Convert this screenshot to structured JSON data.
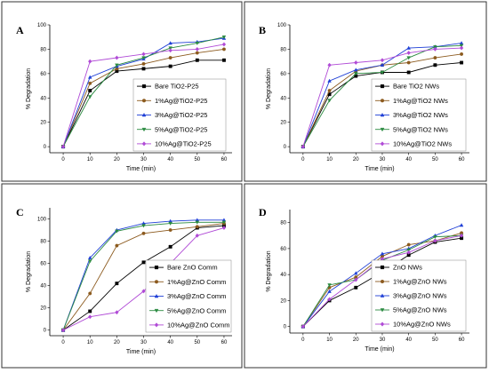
{
  "colors": {
    "Bare": "#000000",
    "1%": "#8c5a1e",
    "3%": "#1f3fd6",
    "5%": "#2a8a40",
    "10%": "#b04ad6"
  },
  "chart_data": [
    {
      "type": "line",
      "panel": "A",
      "xlabel": "Time (min)",
      "ylabel": "% Degradation",
      "xlim": [
        -5,
        63
      ],
      "ylim": [
        -5,
        100
      ],
      "xticks": [
        0,
        10,
        20,
        30,
        40,
        50,
        60
      ],
      "yticks": [
        0,
        20,
        40,
        60,
        80,
        100
      ],
      "legend_position": "bottom-right",
      "x": [
        0,
        10,
        20,
        30,
        40,
        50,
        60
      ],
      "series": [
        {
          "name": "Bare TiO2-P25",
          "key": "Bare",
          "marker": "square",
          "values": [
            0,
            46,
            62,
            64,
            66,
            71,
            71
          ]
        },
        {
          "name": "1%Ag@TiO2-P25",
          "key": "1%",
          "marker": "circle",
          "values": [
            0,
            52,
            64,
            68,
            73,
            77,
            80
          ]
        },
        {
          "name": "3%Ag@TiO2-P25",
          "key": "3%",
          "marker": "triangle-up",
          "values": [
            0,
            57,
            66,
            72,
            85,
            86,
            89
          ]
        },
        {
          "name": "5%Ag@TiO2-P25",
          "key": "5%",
          "marker": "triangle-down",
          "values": [
            0,
            41,
            67,
            73,
            81,
            85,
            90
          ]
        },
        {
          "name": "10%Ag@TiO2-P25",
          "key": "10%",
          "marker": "diamond",
          "values": [
            0,
            70,
            73,
            76,
            79,
            80,
            84
          ]
        }
      ]
    },
    {
      "type": "line",
      "panel": "B",
      "xlabel": "Time (min)",
      "ylabel": "% Degradation",
      "xlim": [
        -5,
        63
      ],
      "ylim": [
        -5,
        100
      ],
      "xticks": [
        0,
        10,
        20,
        30,
        40,
        50,
        60
      ],
      "yticks": [
        0,
        20,
        40,
        60,
        80,
        100
      ],
      "legend_position": "bottom-right",
      "x": [
        0,
        10,
        20,
        30,
        40,
        50,
        60
      ],
      "series": [
        {
          "name": "Bare TiO2 NWs",
          "key": "Bare",
          "marker": "square",
          "values": [
            0,
            43,
            58,
            61,
            61,
            67,
            69
          ]
        },
        {
          "name": "1%Ag@TiO2 NWs",
          "key": "1%",
          "marker": "circle",
          "values": [
            0,
            46,
            62,
            67,
            69,
            73,
            76
          ]
        },
        {
          "name": "3%Ag@TiO2 NWs",
          "key": "3%",
          "marker": "triangle-up",
          "values": [
            0,
            54,
            63,
            67,
            81,
            82,
            85
          ]
        },
        {
          "name": "5%Ag@TiO2 NWs",
          "key": "5%",
          "marker": "triangle-down",
          "values": [
            0,
            38,
            60,
            61,
            73,
            82,
            83
          ]
        },
        {
          "name": "10%Ag@TiO2 NWs",
          "key": "10%",
          "marker": "diamond",
          "values": [
            0,
            67,
            69,
            71,
            77,
            80,
            81
          ]
        }
      ]
    },
    {
      "type": "line",
      "panel": "C",
      "xlabel": "Time (min)",
      "ylabel": "% Degradation",
      "xlim": [
        -5,
        63
      ],
      "ylim": [
        -5,
        110
      ],
      "xticks": [
        0,
        10,
        20,
        30,
        40,
        50,
        60
      ],
      "yticks": [
        0,
        20,
        40,
        60,
        80,
        100
      ],
      "legend_position": "bottom-right",
      "x": [
        0,
        10,
        20,
        30,
        40,
        50,
        60
      ],
      "series": [
        {
          "name": "Bare ZnO Comm",
          "key": "Bare",
          "marker": "square",
          "values": [
            0,
            17,
            42,
            61,
            75,
            92,
            94
          ]
        },
        {
          "name": "1%Ag@ZnO Comm",
          "key": "1%",
          "marker": "circle",
          "values": [
            0,
            33,
            76,
            87,
            90,
            93,
            96
          ]
        },
        {
          "name": "3%Ag@ZnO Comm",
          "key": "3%",
          "marker": "triangle-up",
          "values": [
            0,
            65,
            90,
            96,
            98,
            99,
            99
          ]
        },
        {
          "name": "5%Ag@ZnO Comm",
          "key": "5%",
          "marker": "triangle-down",
          "values": [
            0,
            62,
            89,
            94,
            96,
            97,
            97
          ]
        },
        {
          "name": "10%Ag@ZnO Comm",
          "key": "10%",
          "marker": "diamond",
          "values": [
            0,
            12,
            16,
            35,
            60,
            85,
            92
          ]
        }
      ]
    },
    {
      "type": "line",
      "panel": "D",
      "xlabel": "Time (min)",
      "ylabel": "% Degradation",
      "xlim": [
        -5,
        63
      ],
      "ylim": [
        -5,
        90
      ],
      "xticks": [
        0,
        10,
        20,
        30,
        40,
        50,
        60
      ],
      "yticks": [
        0,
        20,
        40,
        60,
        80
      ],
      "legend_position": "bottom-right",
      "x": [
        0,
        10,
        20,
        30,
        40,
        50,
        60
      ],
      "series": [
        {
          "name": "ZnO NWs",
          "key": "Bare",
          "marker": "square",
          "values": [
            0,
            20,
            30,
            42,
            55,
            65,
            68
          ]
        },
        {
          "name": "1%Ag@ZnO NWs",
          "key": "1%",
          "marker": "circle",
          "values": [
            0,
            30,
            38,
            54,
            63,
            66,
            72
          ]
        },
        {
          "name": "3%Ag@ZnO NWs",
          "key": "3%",
          "marker": "triangle-up",
          "values": [
            0,
            27,
            41,
            56,
            60,
            70,
            78
          ]
        },
        {
          "name": "5%Ag@ZnO NWs",
          "key": "5%",
          "marker": "triangle-down",
          "values": [
            0,
            32,
            36,
            51,
            59,
            69,
            70
          ]
        },
        {
          "name": "10%Ag@ZnO NWs",
          "key": "10%",
          "marker": "diamond",
          "values": [
            0,
            21,
            36,
            52,
            57,
            66,
            70
          ]
        }
      ]
    }
  ]
}
